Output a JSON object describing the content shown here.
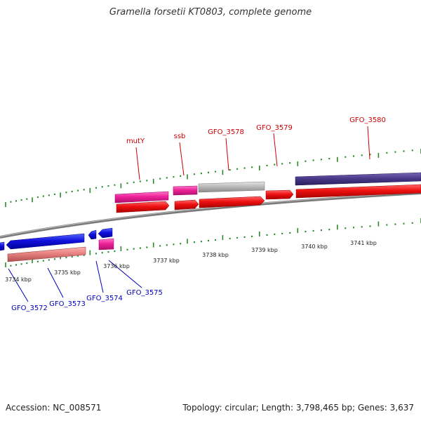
{
  "title": "Gramella forsetii KT0803, complete genome",
  "footer": {
    "accession": "Accession: NC_008571",
    "summary": "Topology: circular; Length: 3,798,465 bp; Genes: 3,637"
  },
  "colors": {
    "background": "#ffffff",
    "backbone": "#888888",
    "tick": "#2a8a2a",
    "forward_label": "#cc0000",
    "reverse_label": "#0000bb",
    "scale_label": "#222222"
  },
  "scale": {
    "labels": [
      "3734 kbp",
      "3735 kbp",
      "3736 kbp",
      "3737 kbp",
      "3738 kbp",
      "3739 kbp",
      "3740 kbp",
      "3741 kbp"
    ]
  },
  "genes": {
    "forward": [
      "mutY",
      "ssb",
      "GFO_3578",
      "GFO_3579",
      "GFO_3580"
    ],
    "reverse": [
      "GFO_3572",
      "GFO_3573",
      "GFO_3574",
      "GFO_3575"
    ]
  },
  "feature_colors": {
    "forward_cds": "#ee1111",
    "reverse_cds": "#1111dd",
    "mutY": "#ee2299",
    "ssb": "#ee2299",
    "GFO_3578": "#bbbbbb",
    "GFO_3580": "#4a3a8a",
    "GFO_3572": "#e88080",
    "GFO_3574": "#ee2299"
  }
}
